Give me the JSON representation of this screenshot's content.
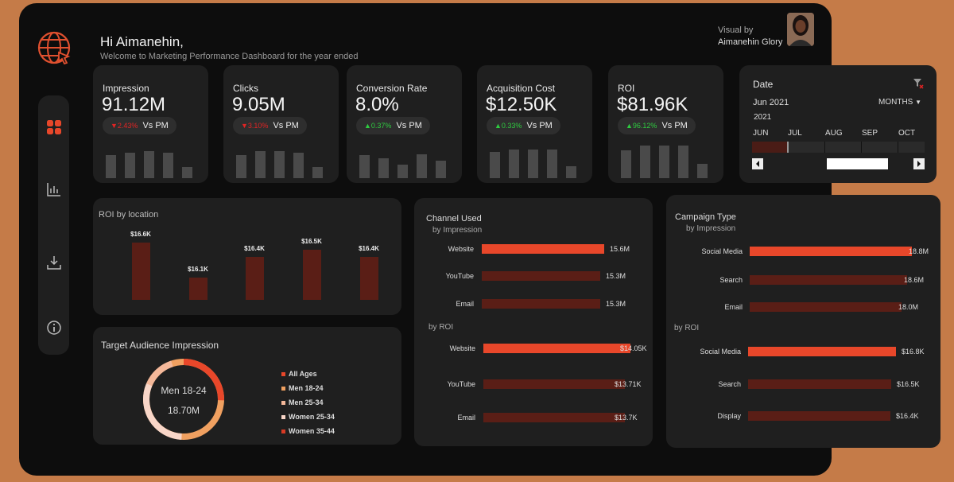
{
  "header": {
    "greeting": "Hi Aimanehin,",
    "welcome": "Welcome to Marketing Performance Dashboard for the year ended",
    "visual_by": "Visual by",
    "author": "Aimanehin Glory"
  },
  "kpis": [
    {
      "label": "Impression",
      "value": "91.12M",
      "change": "▼2.43%",
      "direction": "down",
      "vs": "Vs PM",
      "bars": [
        0.68,
        0.76,
        0.8,
        0.76,
        0.34
      ]
    },
    {
      "label": "Clicks",
      "value": "9.05M",
      "change": "▼3.10%",
      "direction": "down",
      "vs": "Vs PM",
      "bars": [
        0.68,
        0.8,
        0.8,
        0.76,
        0.34
      ]
    },
    {
      "label": "Conversion Rate",
      "value": "8.0%",
      "change": "▲0.37%",
      "direction": "up",
      "vs": "Vs PM",
      "bars": [
        0.7,
        0.6,
        0.4,
        0.72,
        0.52
      ]
    },
    {
      "label": "Acquisition Cost",
      "value": "$12.50K",
      "change": "▲0.33%",
      "direction": "up",
      "vs": "Vs PM",
      "bars": [
        0.78,
        0.86,
        0.86,
        0.86,
        0.36
      ]
    },
    {
      "label": "ROI",
      "value": "$81.96K",
      "change": "▲96.12%",
      "direction": "up",
      "vs": "Vs PM",
      "bars": [
        0.84,
        0.98,
        0.98,
        0.98,
        0.42
      ]
    }
  ],
  "date_filter": {
    "title": "Date",
    "selected": "Jun 2021",
    "period": "MONTHS",
    "year": "2021",
    "months": [
      "JUN",
      "JUL",
      "AUG",
      "SEP",
      "OCT"
    ]
  },
  "roi_location": {
    "title": "ROI by location",
    "chart_data": {
      "type": "bar",
      "values": [
        16.6,
        16.1,
        16.4,
        16.5,
        16.4
      ],
      "labels": [
        "$16.6K",
        "$16.1K",
        "$16.4K",
        "$16.5K",
        "$16.4K"
      ]
    }
  },
  "target_audience": {
    "title": "Target Audience Impression",
    "center_label": "Men 18-24",
    "center_value": "18.70M",
    "legend": [
      {
        "name": "All Ages",
        "color": "#e8472a"
      },
      {
        "name": "Men 18-24",
        "color": "#f0a060"
      },
      {
        "name": "Men 25-34",
        "color": "#f4b89a"
      },
      {
        "name": "Women 25-34",
        "color": "#f8d6c8"
      },
      {
        "name": "Women 35-44",
        "color": "#d83a24"
      }
    ]
  },
  "channel": {
    "title": "Channel Used",
    "sub_impression": "by Impression",
    "sub_roi": "by ROI",
    "impression": {
      "categories": [
        "Website",
        "YouTube",
        "Email"
      ],
      "values": [
        15.6,
        15.3,
        15.3
      ],
      "labels": [
        "15.6M",
        "15.3M",
        "15.3M"
      ]
    },
    "roi": {
      "categories": [
        "Website",
        "YouTube",
        "Email"
      ],
      "values": [
        14.05,
        13.71,
        13.7
      ],
      "labels": [
        "$14.05K",
        "$13.71K",
        "$13.7K"
      ]
    }
  },
  "campaign": {
    "title": "Campaign Type",
    "sub_impression": "by Impression",
    "sub_roi": "by ROI",
    "impression": {
      "categories": [
        "Social Media",
        "Search",
        "Email"
      ],
      "values": [
        18.8,
        18.6,
        18.0
      ],
      "labels": [
        "18.8M",
        "18.6M",
        "18.0M"
      ]
    },
    "roi": {
      "categories": [
        "Social Media",
        "Search",
        "Display"
      ],
      "values": [
        16.8,
        16.5,
        16.4
      ],
      "labels": [
        "$16.8K",
        "$16.5K",
        "$16.4K"
      ]
    }
  },
  "colors": {
    "accent": "#e8472a",
    "dark_bar": "#5a1e16",
    "card": "#1f1f1f",
    "background": "#0d0d0d",
    "frame": "#c57b48"
  }
}
